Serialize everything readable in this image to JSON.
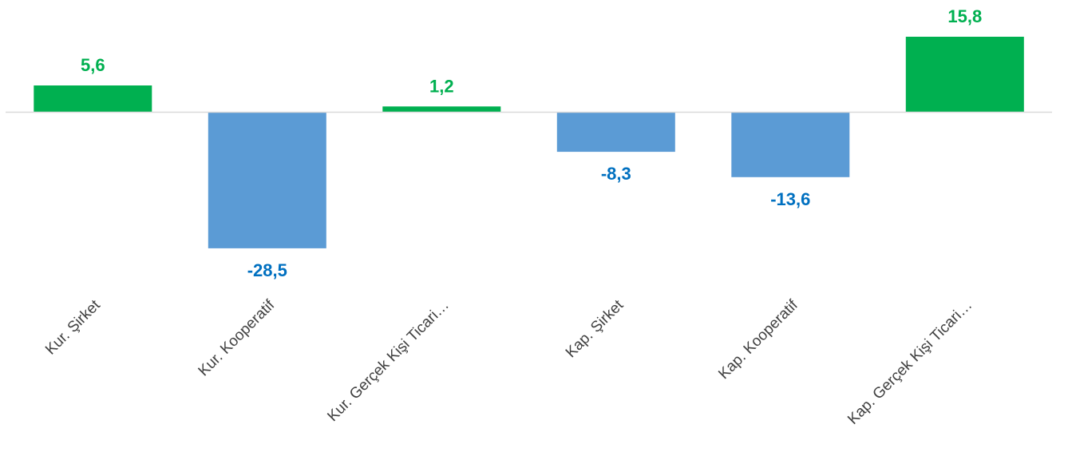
{
  "chart_data": {
    "type": "bar",
    "categories": [
      "Kur. Şirket",
      "Kur. Kooperatif",
      "Kur. Gerçek Kişi Ticari…",
      "Kap. Şirket",
      "Kap. Kooperatif",
      "Kap. Gerçek Kişi Ticari…"
    ],
    "values": [
      5.6,
      -28.5,
      1.2,
      -8.3,
      -13.6,
      15.8
    ],
    "value_labels": [
      "5,6",
      "-28,5",
      "1,2",
      "-8,3",
      "-13,6",
      "15,8"
    ],
    "title": "",
    "xlabel": "",
    "ylabel": "",
    "ylim": [
      -28.5,
      15.8
    ],
    "grid": false,
    "legend": "none",
    "colors": {
      "positive_bar": "#00B050",
      "negative_bar": "#5B9BD5",
      "positive_label": "#00B050",
      "negative_label": "#0070C0",
      "axis_line": "#D9D9D9"
    }
  }
}
